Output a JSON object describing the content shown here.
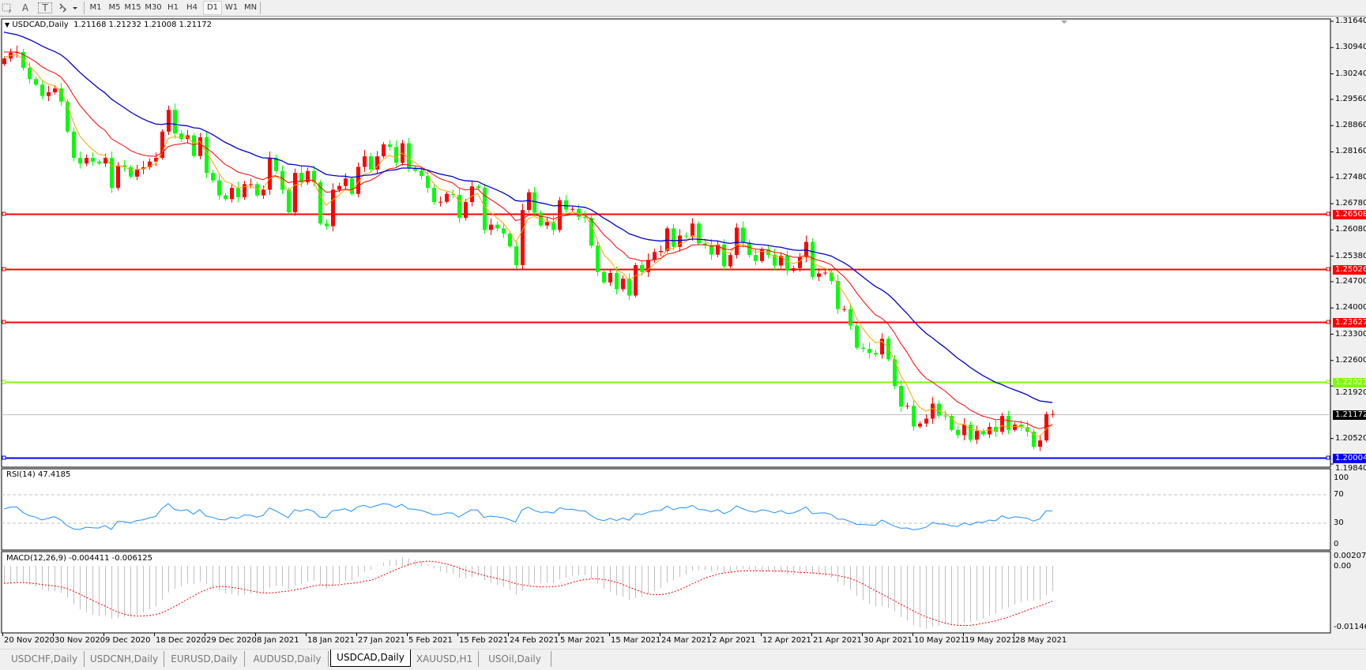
{
  "toolbar": {
    "icons": [
      "period-separator-icon",
      "text-icon",
      "text-label-icon",
      "arrows-icon"
    ],
    "text_icon_glyph": "A",
    "label_icon_glyph": "T",
    "timeframes": [
      "M1",
      "M5",
      "M15",
      "M30",
      "H1",
      "H4",
      "D1",
      "W1",
      "MN"
    ],
    "active_timeframe": "D1"
  },
  "chart": {
    "symbol_label": "USDCAD,Daily",
    "ohlc": "1.21168 1.21232 1.21008 1.21172",
    "bull_color": "#ff0000",
    "bear_color": "#00ff00",
    "ma_colors": [
      "#ffa500",
      "#ff0000",
      "#0000cd"
    ],
    "price_axis": [
      "1.31640",
      "1.30940",
      "1.30240",
      "1.29560",
      "1.28860",
      "1.28160",
      "1.27480",
      "1.26780",
      "1.26080",
      "1.25380",
      "1.24700",
      "1.24000",
      "1.23300",
      "1.22600",
      "1.21920",
      "1.20520",
      "1.19840"
    ],
    "price_range": [
      1.1984,
      1.3164
    ],
    "horizontal_lines": [
      {
        "price": "1.26508",
        "color": "#ff0000"
      },
      {
        "price": "1.25026",
        "color": "#ff0000"
      },
      {
        "price": "1.23627",
        "color": "#ff0000"
      },
      {
        "price": "1.22021",
        "color": "#7cfc00"
      },
      {
        "price": "1.20004",
        "color": "#0000ff"
      }
    ],
    "current_price": "1.21172",
    "closes": [
      1.3065,
      1.308,
      1.3082,
      1.304,
      1.301,
      1.2995,
      1.2965,
      1.2975,
      1.2985,
      1.295,
      1.287,
      1.28,
      1.2785,
      1.28,
      1.279,
      1.2785,
      1.28,
      1.272,
      1.278,
      1.2775,
      1.275,
      1.277,
      1.2775,
      1.279,
      1.28,
      1.287,
      1.2928,
      1.2865,
      1.285,
      1.286,
      1.2805,
      1.2855,
      1.276,
      1.274,
      1.27,
      1.269,
      1.272,
      1.2695,
      1.273,
      1.273,
      1.27,
      1.2715,
      1.28,
      1.2765,
      1.2715,
      1.2655,
      1.276,
      1.2735,
      1.2765,
      1.2735,
      1.2625,
      1.2618,
      1.2715,
      1.2725,
      1.2745,
      1.2704,
      1.2776,
      1.2804,
      1.2769,
      1.2804,
      1.2836,
      1.2829,
      1.2787,
      1.2839,
      1.2773,
      1.2766,
      1.2752,
      1.272,
      1.2682,
      1.2683,
      1.2704,
      1.2701,
      1.264,
      1.2682,
      1.2724,
      1.272,
      1.2608,
      1.2622,
      1.2612,
      1.2598,
      1.2564,
      1.2514,
      1.2661,
      1.2708,
      1.2654,
      1.262,
      1.2629,
      1.2608,
      1.2687,
      1.2662,
      1.2664,
      1.2643,
      1.264,
      1.2566,
      1.2496,
      1.2468,
      1.2493,
      1.245,
      1.2478,
      1.2433,
      1.2514,
      1.2496,
      1.2528,
      1.2549,
      1.2552,
      1.2612,
      1.2563,
      1.2593,
      1.2591,
      1.2625,
      1.2572,
      1.2567,
      1.2542,
      1.2569,
      1.2511,
      1.2541,
      1.2614,
      1.2574,
      1.2541,
      1.2525,
      1.2556,
      1.2541,
      1.2513,
      1.2539,
      1.2499,
      1.2506,
      1.2535,
      1.2576,
      1.2483,
      1.2492,
      1.2494,
      1.2472,
      1.2397,
      1.2397,
      1.2353,
      1.2294,
      1.2291,
      1.228,
      1.2276,
      1.2318,
      1.2263,
      1.2192,
      1.2137,
      1.2139,
      1.2084,
      1.2092,
      1.2105,
      1.2145,
      1.2113,
      1.2112,
      1.2075,
      1.2061,
      1.2089,
      1.2049,
      1.2072,
      1.2063,
      1.2083,
      1.207,
      1.2112,
      1.2075,
      1.2089,
      1.2082,
      1.207,
      1.203,
      1.2047,
      1.2117,
      1.21172
    ],
    "dates": [
      "20 Nov 2020",
      "30 Nov 2020",
      "9 Dec 2020",
      "18 Dec 2020",
      "29 Dec 2020",
      "8 Jan 2021",
      "18 Jan 2021",
      "27 Jan 2021",
      "5 Feb 2021",
      "15 Feb 2021",
      "24 Feb 2021",
      "5 Mar 2021",
      "15 Mar 2021",
      "24 Mar 2021",
      "2 Apr 2021",
      "12 Apr 2021",
      "21 Apr 2021",
      "30 Apr 2021",
      "10 May 2021",
      "19 May 2021",
      "28 May 2021"
    ]
  },
  "rsi": {
    "label": "RSI(14) 47.4185",
    "axis": [
      "100",
      "70",
      "30",
      "0"
    ],
    "line_color": "#1e90ff"
  },
  "macd": {
    "label": "MACD(12,26,9) -0.004411 -0.006125",
    "axis": [
      "0.002074",
      "0.00",
      "-0.011462"
    ],
    "signal_color": "#ff0000",
    "histogram_color": "#c0c0c0"
  },
  "tabs": [
    "USDCHF,Daily",
    "USDCNH,Daily",
    "EURUSD,Daily",
    "AUDUSD,Daily",
    "USDCAD,Daily",
    "XAUUSD,H1",
    "USOil,Daily"
  ],
  "active_tab": "USDCAD,Daily"
}
